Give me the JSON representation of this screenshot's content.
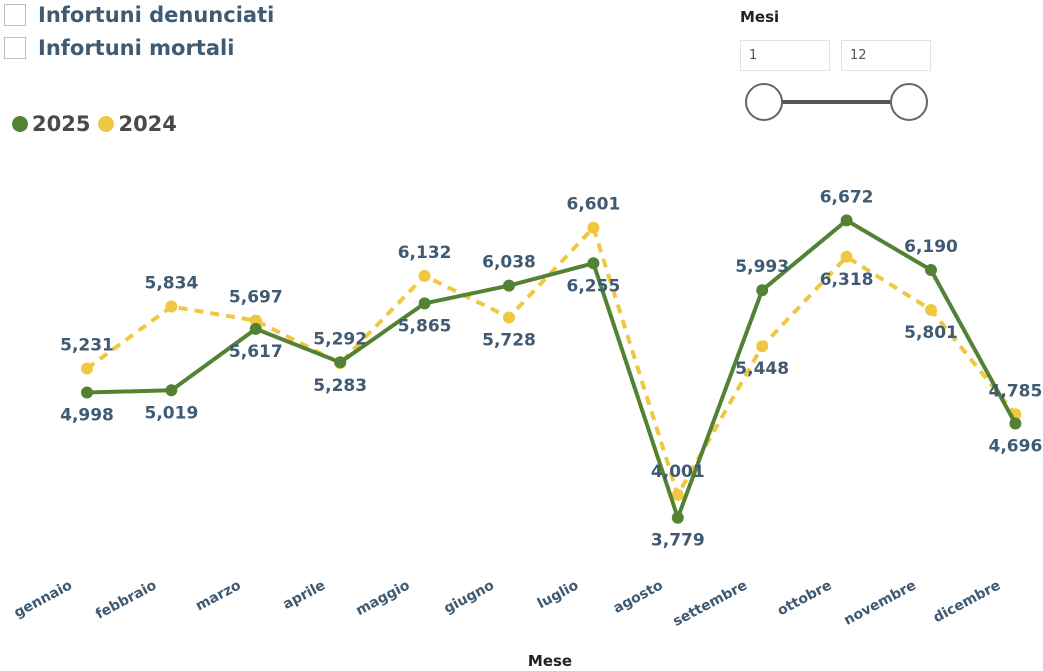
{
  "filters": {
    "options": [
      {
        "label": "Infortuni denunciati",
        "checked": false
      },
      {
        "label": "Infortuni mortali",
        "checked": false
      }
    ]
  },
  "slicer": {
    "title": "Mesi",
    "from_value": "1",
    "to_value": "12",
    "range_min": 1,
    "range_max": 12
  },
  "colors": {
    "series_2025": "#548235",
    "series_2024": "#efc741",
    "label_text": "#3f5a73"
  },
  "chart_data": {
    "type": "line",
    "categories": [
      "gennaio",
      "febbraio",
      "marzo",
      "aprile",
      "maggio",
      "giugno",
      "luglio",
      "agosto",
      "settembre",
      "ottobre",
      "novembre",
      "dicembre"
    ],
    "series": [
      {
        "name": "2025",
        "color": "#548235",
        "style": "solid",
        "values": [
          4998,
          5019,
          5617,
          5292,
          5865,
          6038,
          6255,
          3779,
          5993,
          6672,
          6190,
          4696
        ]
      },
      {
        "name": "2024",
        "color": "#efc741",
        "style": "dashed",
        "values": [
          5231,
          5834,
          5697,
          5283,
          6132,
          5728,
          6601,
          4001,
          5448,
          6318,
          5801,
          4785
        ]
      }
    ],
    "xlabel": "Mese",
    "ylabel": "",
    "ylim": [
      3650,
      6900
    ],
    "grid": false,
    "legend": "top-left"
  }
}
